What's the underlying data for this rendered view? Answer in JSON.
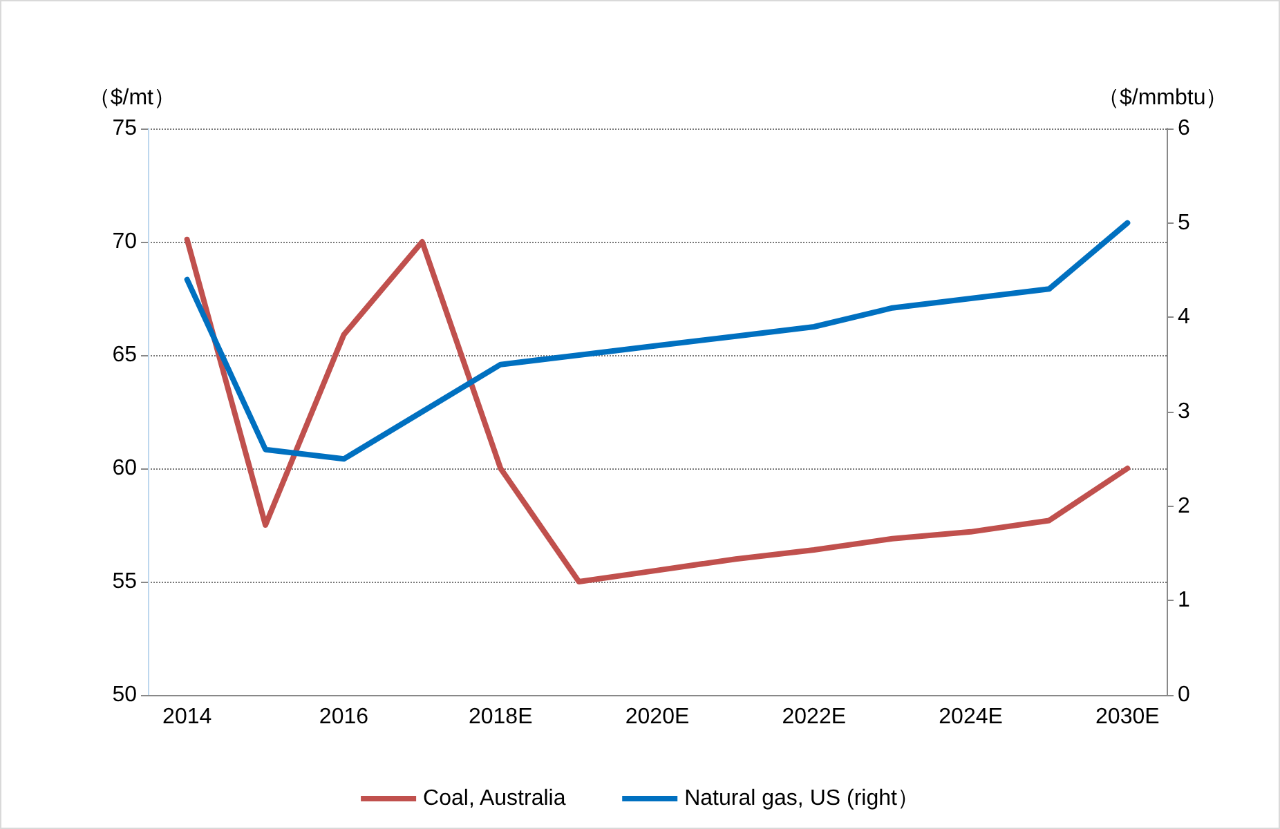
{
  "chart_data": {
    "type": "line",
    "categories": [
      "2014",
      null,
      "2016",
      null,
      "2018E",
      null,
      "2020E",
      null,
      "2022E",
      null,
      "2024E",
      null,
      "2030E"
    ],
    "ylabel": "（$/mt）",
    "y2label": "（$/mmbtu）",
    "series": [
      {
        "name": "Coal, Australia",
        "color": "#c0504d",
        "values": [
          70.1,
          57.5,
          65.9,
          70.0,
          60.0,
          55.0,
          55.5,
          56.0,
          56.4,
          56.9,
          57.2,
          57.7,
          60.0
        ]
      },
      {
        "name": "Natural gas, US (right）",
        "color": "#0070c0",
        "axis": "y2",
        "values": [
          4.4,
          2.6,
          2.5,
          3.0,
          3.5,
          3.6,
          3.7,
          3.8,
          3.9,
          4.1,
          4.2,
          4.3,
          5.0
        ]
      }
    ],
    "ylim": [
      50,
      75
    ],
    "yticks": [
      50,
      55,
      60,
      65,
      70,
      75
    ],
    "y2lim": [
      0,
      6
    ],
    "y2ticks": [
      0,
      1,
      2,
      3,
      4,
      5,
      6
    ],
    "grid": "y",
    "legend": "bottom",
    "marker": "none",
    "line_style": "solid"
  }
}
